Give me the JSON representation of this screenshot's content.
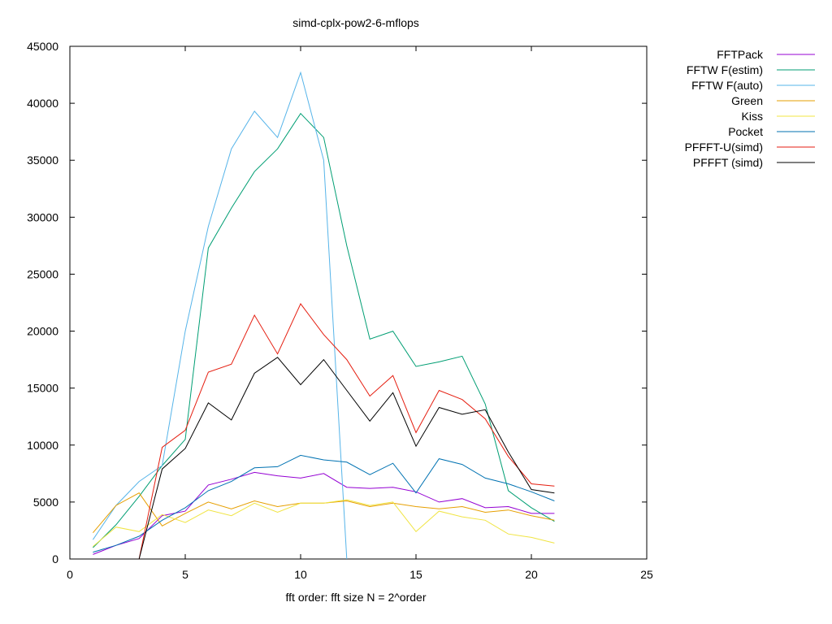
{
  "chart_data": {
    "type": "line",
    "title": "simd-cplx-pow2-6-mflops",
    "xlabel": "fft order: fft size N = 2^order",
    "ylabel": "",
    "xlim": [
      0,
      25
    ],
    "ylim": [
      0,
      45000
    ],
    "xticks": [
      0,
      5,
      10,
      15,
      20,
      25
    ],
    "yticks": [
      0,
      5000,
      10000,
      15000,
      20000,
      25000,
      30000,
      35000,
      40000,
      45000
    ],
    "grid": false,
    "legend_position": "outside-top-right",
    "series": [
      {
        "name": "FFTPack",
        "color": "#9400d3",
        "points": [
          [
            1,
            400
          ],
          [
            2,
            1200
          ],
          [
            3,
            1800
          ],
          [
            4,
            3800
          ],
          [
            5,
            4200
          ],
          [
            6,
            6500
          ],
          [
            7,
            7000
          ],
          [
            8,
            7600
          ],
          [
            9,
            7300
          ],
          [
            10,
            7100
          ],
          [
            11,
            7500
          ],
          [
            12,
            6300
          ],
          [
            13,
            6200
          ],
          [
            14,
            6300
          ],
          [
            15,
            5900
          ],
          [
            16,
            5000
          ],
          [
            17,
            5300
          ],
          [
            18,
            4500
          ],
          [
            19,
            4600
          ],
          [
            20,
            4000
          ],
          [
            21,
            4000
          ]
        ]
      },
      {
        "name": "FFTW F(estim)",
        "color": "#009e73",
        "points": [
          [
            1,
            1000
          ],
          [
            2,
            3000
          ],
          [
            3,
            5500
          ],
          [
            4,
            8200
          ],
          [
            5,
            10500
          ],
          [
            6,
            27300
          ],
          [
            7,
            30800
          ],
          [
            8,
            34000
          ],
          [
            9,
            36000
          ],
          [
            10,
            39100
          ],
          [
            11,
            37000
          ],
          [
            12,
            27500
          ],
          [
            13,
            19300
          ],
          [
            14,
            20000
          ],
          [
            15,
            16900
          ],
          [
            16,
            17300
          ],
          [
            17,
            17800
          ],
          [
            18,
            13600
          ],
          [
            19,
            6000
          ],
          [
            20,
            4500
          ],
          [
            21,
            3300
          ]
        ]
      },
      {
        "name": "FFTW F(auto)",
        "color": "#56b4e9",
        "points": [
          [
            1,
            1700
          ],
          [
            2,
            4700
          ],
          [
            3,
            6800
          ],
          [
            4,
            8200
          ],
          [
            5,
            20000
          ],
          [
            6,
            29200
          ],
          [
            7,
            36000
          ],
          [
            8,
            39300
          ],
          [
            9,
            37000
          ],
          [
            10,
            42700
          ],
          [
            11,
            35000
          ],
          [
            12,
            0
          ]
        ]
      },
      {
        "name": "Green",
        "color": "#e69f00",
        "points": [
          [
            1,
            2300
          ],
          [
            2,
            4700
          ],
          [
            3,
            5800
          ],
          [
            4,
            2900
          ],
          [
            5,
            4000
          ],
          [
            6,
            5000
          ],
          [
            7,
            4400
          ],
          [
            8,
            5100
          ],
          [
            9,
            4600
          ],
          [
            10,
            4900
          ],
          [
            11,
            4900
          ],
          [
            12,
            5100
          ],
          [
            13,
            4600
          ],
          [
            14,
            4900
          ],
          [
            15,
            4600
          ],
          [
            16,
            4400
          ],
          [
            17,
            4600
          ],
          [
            18,
            4100
          ],
          [
            19,
            4300
          ],
          [
            20,
            3800
          ],
          [
            21,
            3400
          ]
        ]
      },
      {
        "name": "Kiss",
        "color": "#f0e442",
        "points": [
          [
            1,
            1100
          ],
          [
            2,
            2800
          ],
          [
            3,
            2400
          ],
          [
            4,
            3900
          ],
          [
            5,
            3200
          ],
          [
            6,
            4300
          ],
          [
            7,
            3800
          ],
          [
            8,
            4900
          ],
          [
            9,
            4100
          ],
          [
            10,
            4900
          ],
          [
            11,
            4900
          ],
          [
            12,
            5200
          ],
          [
            13,
            4700
          ],
          [
            14,
            5000
          ],
          [
            15,
            2400
          ],
          [
            16,
            4200
          ],
          [
            17,
            3700
          ],
          [
            18,
            3400
          ],
          [
            19,
            2200
          ],
          [
            20,
            1900
          ],
          [
            21,
            1400
          ]
        ]
      },
      {
        "name": "Pocket",
        "color": "#0072b2",
        "points": [
          [
            1,
            600
          ],
          [
            2,
            1200
          ],
          [
            3,
            2000
          ],
          [
            4,
            3400
          ],
          [
            5,
            4500
          ],
          [
            6,
            6000
          ],
          [
            7,
            6800
          ],
          [
            8,
            8000
          ],
          [
            9,
            8100
          ],
          [
            10,
            9100
          ],
          [
            11,
            8700
          ],
          [
            12,
            8500
          ],
          [
            13,
            7400
          ],
          [
            14,
            8400
          ],
          [
            15,
            5800
          ],
          [
            16,
            8800
          ],
          [
            17,
            8300
          ],
          [
            18,
            7100
          ],
          [
            19,
            6600
          ],
          [
            20,
            5900
          ],
          [
            21,
            5100
          ]
        ]
      },
      {
        "name": "PFFFT-U(simd)",
        "color": "#e51e10",
        "points": [
          [
            3,
            0
          ],
          [
            4,
            9800
          ],
          [
            5,
            11300
          ],
          [
            6,
            16400
          ],
          [
            7,
            17100
          ],
          [
            8,
            21400
          ],
          [
            9,
            18000
          ],
          [
            10,
            22400
          ],
          [
            11,
            19700
          ],
          [
            12,
            17500
          ],
          [
            13,
            14300
          ],
          [
            14,
            16100
          ],
          [
            15,
            11100
          ],
          [
            16,
            14800
          ],
          [
            17,
            14000
          ],
          [
            18,
            12300
          ],
          [
            19,
            9000
          ],
          [
            20,
            6600
          ],
          [
            21,
            6400
          ]
        ]
      },
      {
        "name": "PFFFT (simd)",
        "color": "#000000",
        "points": [
          [
            3,
            0
          ],
          [
            4,
            7900
          ],
          [
            5,
            9700
          ],
          [
            6,
            13700
          ],
          [
            7,
            12200
          ],
          [
            8,
            16300
          ],
          [
            9,
            17700
          ],
          [
            10,
            15300
          ],
          [
            11,
            17500
          ],
          [
            12,
            14800
          ],
          [
            13,
            12100
          ],
          [
            14,
            14600
          ],
          [
            15,
            9900
          ],
          [
            16,
            13300
          ],
          [
            17,
            12700
          ],
          [
            18,
            13100
          ],
          [
            19,
            9400
          ],
          [
            20,
            6100
          ],
          [
            21,
            5800
          ]
        ]
      }
    ]
  }
}
